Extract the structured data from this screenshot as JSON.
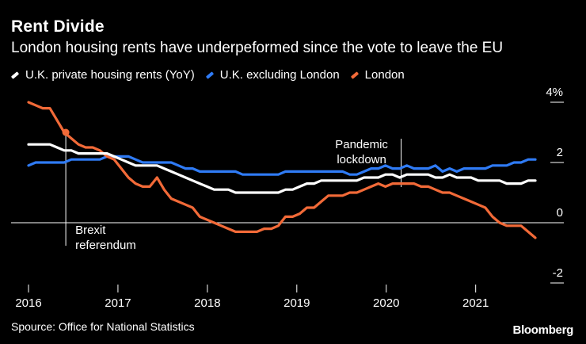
{
  "header": {
    "title": "Rent Divide",
    "subtitle": "London housing rents have underpeformed since the vote to leave the EU"
  },
  "footer": {
    "source": "Spource: Office for National Statistics",
    "brand": "Bloomberg"
  },
  "chart_data": {
    "type": "line",
    "title": "Rent Divide",
    "subtitle": "London housing rents have underpeformed since the vote to leave the EU",
    "xlabel": "",
    "ylabel": "",
    "y_unit": "%",
    "ylim": [
      -2,
      4
    ],
    "xlim": [
      2016.0,
      2021.667
    ],
    "x_ticks": [
      {
        "value": 2016,
        "label": "2016"
      },
      {
        "value": 2017,
        "label": "2017"
      },
      {
        "value": 2018,
        "label": "2018"
      },
      {
        "value": 2019,
        "label": "2019"
      },
      {
        "value": 2020,
        "label": "2020"
      },
      {
        "value": 2021,
        "label": "2021"
      }
    ],
    "y_ticks": [
      {
        "value": 4,
        "label": "4%"
      },
      {
        "value": 2,
        "label": "2"
      },
      {
        "value": 0,
        "label": "0"
      },
      {
        "value": -2,
        "label": "-2"
      }
    ],
    "legend_position": "top-left",
    "annotations": [
      {
        "x": 2016.417,
        "lines": [
          "Brexit",
          "referendum"
        ],
        "side": "below"
      },
      {
        "x": 2020.167,
        "lines": [
          "Pandemic",
          "lockdown"
        ],
        "side": "above"
      }
    ],
    "series": [
      {
        "name": "U.K. private housing rents (YoY)",
        "color": "#ffffff",
        "values": [
          2.6,
          2.6,
          2.6,
          2.6,
          2.5,
          2.4,
          2.4,
          2.3,
          2.3,
          2.3,
          2.3,
          2.3,
          2.2,
          2.1,
          2.0,
          1.9,
          1.9,
          1.9,
          1.9,
          1.8,
          1.7,
          1.6,
          1.5,
          1.4,
          1.3,
          1.2,
          1.1,
          1.1,
          1.1,
          1.0,
          1.0,
          1.0,
          1.0,
          1.0,
          1.0,
          1.0,
          1.1,
          1.1,
          1.2,
          1.3,
          1.3,
          1.4,
          1.4,
          1.4,
          1.4,
          1.4,
          1.4,
          1.5,
          1.5,
          1.5,
          1.6,
          1.6,
          1.5,
          1.6,
          1.6,
          1.6,
          1.6,
          1.5,
          1.5,
          1.6,
          1.5,
          1.5,
          1.5,
          1.4,
          1.4,
          1.4,
          1.4,
          1.3,
          1.3,
          1.3,
          1.4,
          1.4
        ]
      },
      {
        "name": "U.K. excluding London",
        "color": "#2f7bf5",
        "values": [
          1.9,
          2.0,
          2.0,
          2.0,
          2.0,
          2.0,
          2.1,
          2.1,
          2.1,
          2.1,
          2.1,
          2.2,
          2.2,
          2.2,
          2.2,
          2.1,
          2.0,
          2.0,
          2.0,
          2.0,
          2.0,
          1.9,
          1.8,
          1.8,
          1.7,
          1.7,
          1.7,
          1.7,
          1.7,
          1.7,
          1.6,
          1.6,
          1.6,
          1.6,
          1.6,
          1.6,
          1.7,
          1.7,
          1.7,
          1.7,
          1.7,
          1.7,
          1.7,
          1.7,
          1.7,
          1.6,
          1.6,
          1.7,
          1.8,
          1.8,
          1.9,
          1.8,
          1.8,
          1.9,
          1.8,
          1.8,
          1.8,
          1.9,
          1.7,
          1.8,
          1.7,
          1.8,
          1.8,
          1.8,
          1.8,
          1.9,
          1.9,
          1.9,
          2.0,
          2.0,
          2.1,
          2.1
        ]
      },
      {
        "name": "London",
        "color": "#f26a38",
        "values": [
          4.0,
          3.9,
          3.8,
          3.8,
          3.4,
          3.0,
          2.8,
          2.6,
          2.5,
          2.5,
          2.4,
          2.2,
          2.1,
          1.8,
          1.5,
          1.3,
          1.2,
          1.2,
          1.5,
          1.1,
          0.8,
          0.7,
          0.6,
          0.5,
          0.2,
          0.1,
          0.0,
          -0.1,
          -0.2,
          -0.3,
          -0.3,
          -0.3,
          -0.3,
          -0.2,
          -0.2,
          -0.1,
          0.2,
          0.2,
          0.3,
          0.5,
          0.5,
          0.7,
          0.9,
          0.9,
          0.9,
          1.0,
          1.0,
          1.1,
          1.2,
          1.3,
          1.2,
          1.3,
          1.3,
          1.3,
          1.3,
          1.2,
          1.2,
          1.1,
          1.0,
          1.0,
          0.9,
          0.8,
          0.7,
          0.6,
          0.5,
          0.2,
          0.0,
          -0.1,
          -0.1,
          -0.1,
          -0.3,
          -0.5
        ]
      }
    ]
  }
}
